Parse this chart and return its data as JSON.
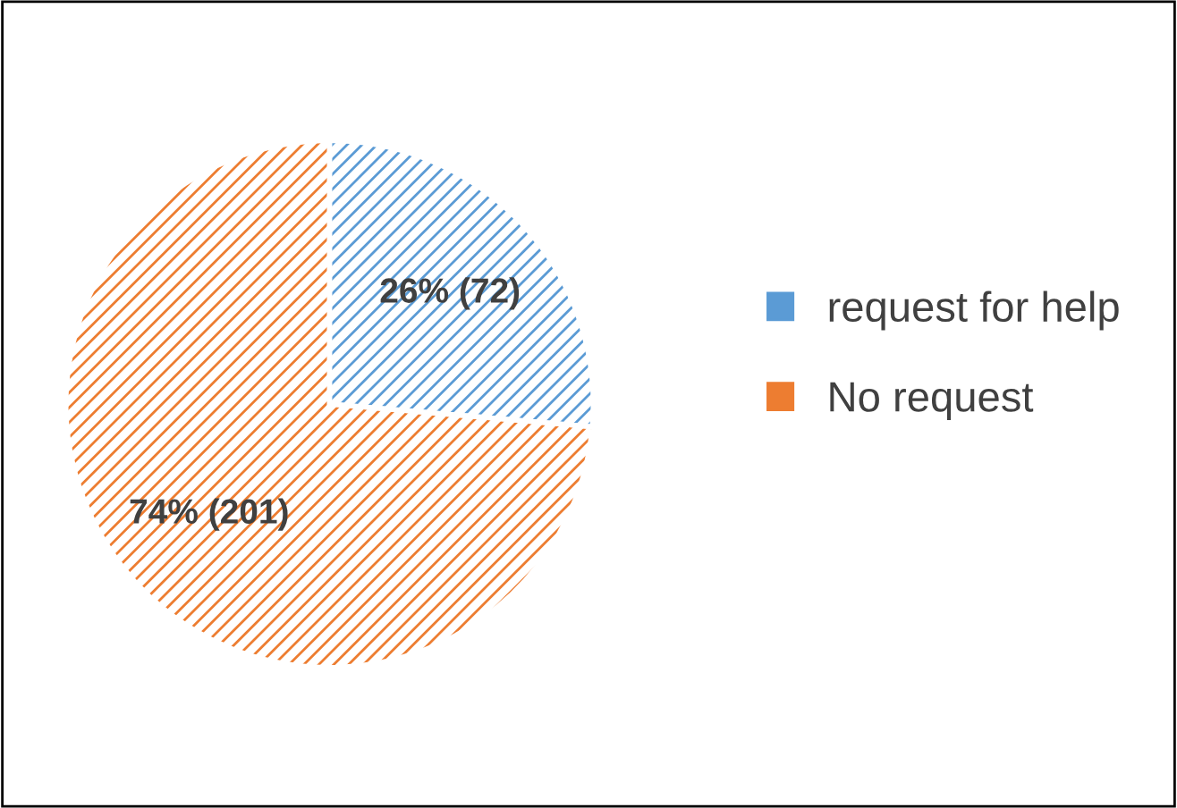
{
  "chart_data": {
    "type": "pie",
    "categories": [
      "request for help",
      "No request"
    ],
    "values": [
      72,
      201
    ],
    "value_labels": [
      "26% (72)",
      "74% (201)"
    ],
    "colors": [
      "#5b9bd5",
      "#ed7d31"
    ],
    "legend": "right"
  }
}
